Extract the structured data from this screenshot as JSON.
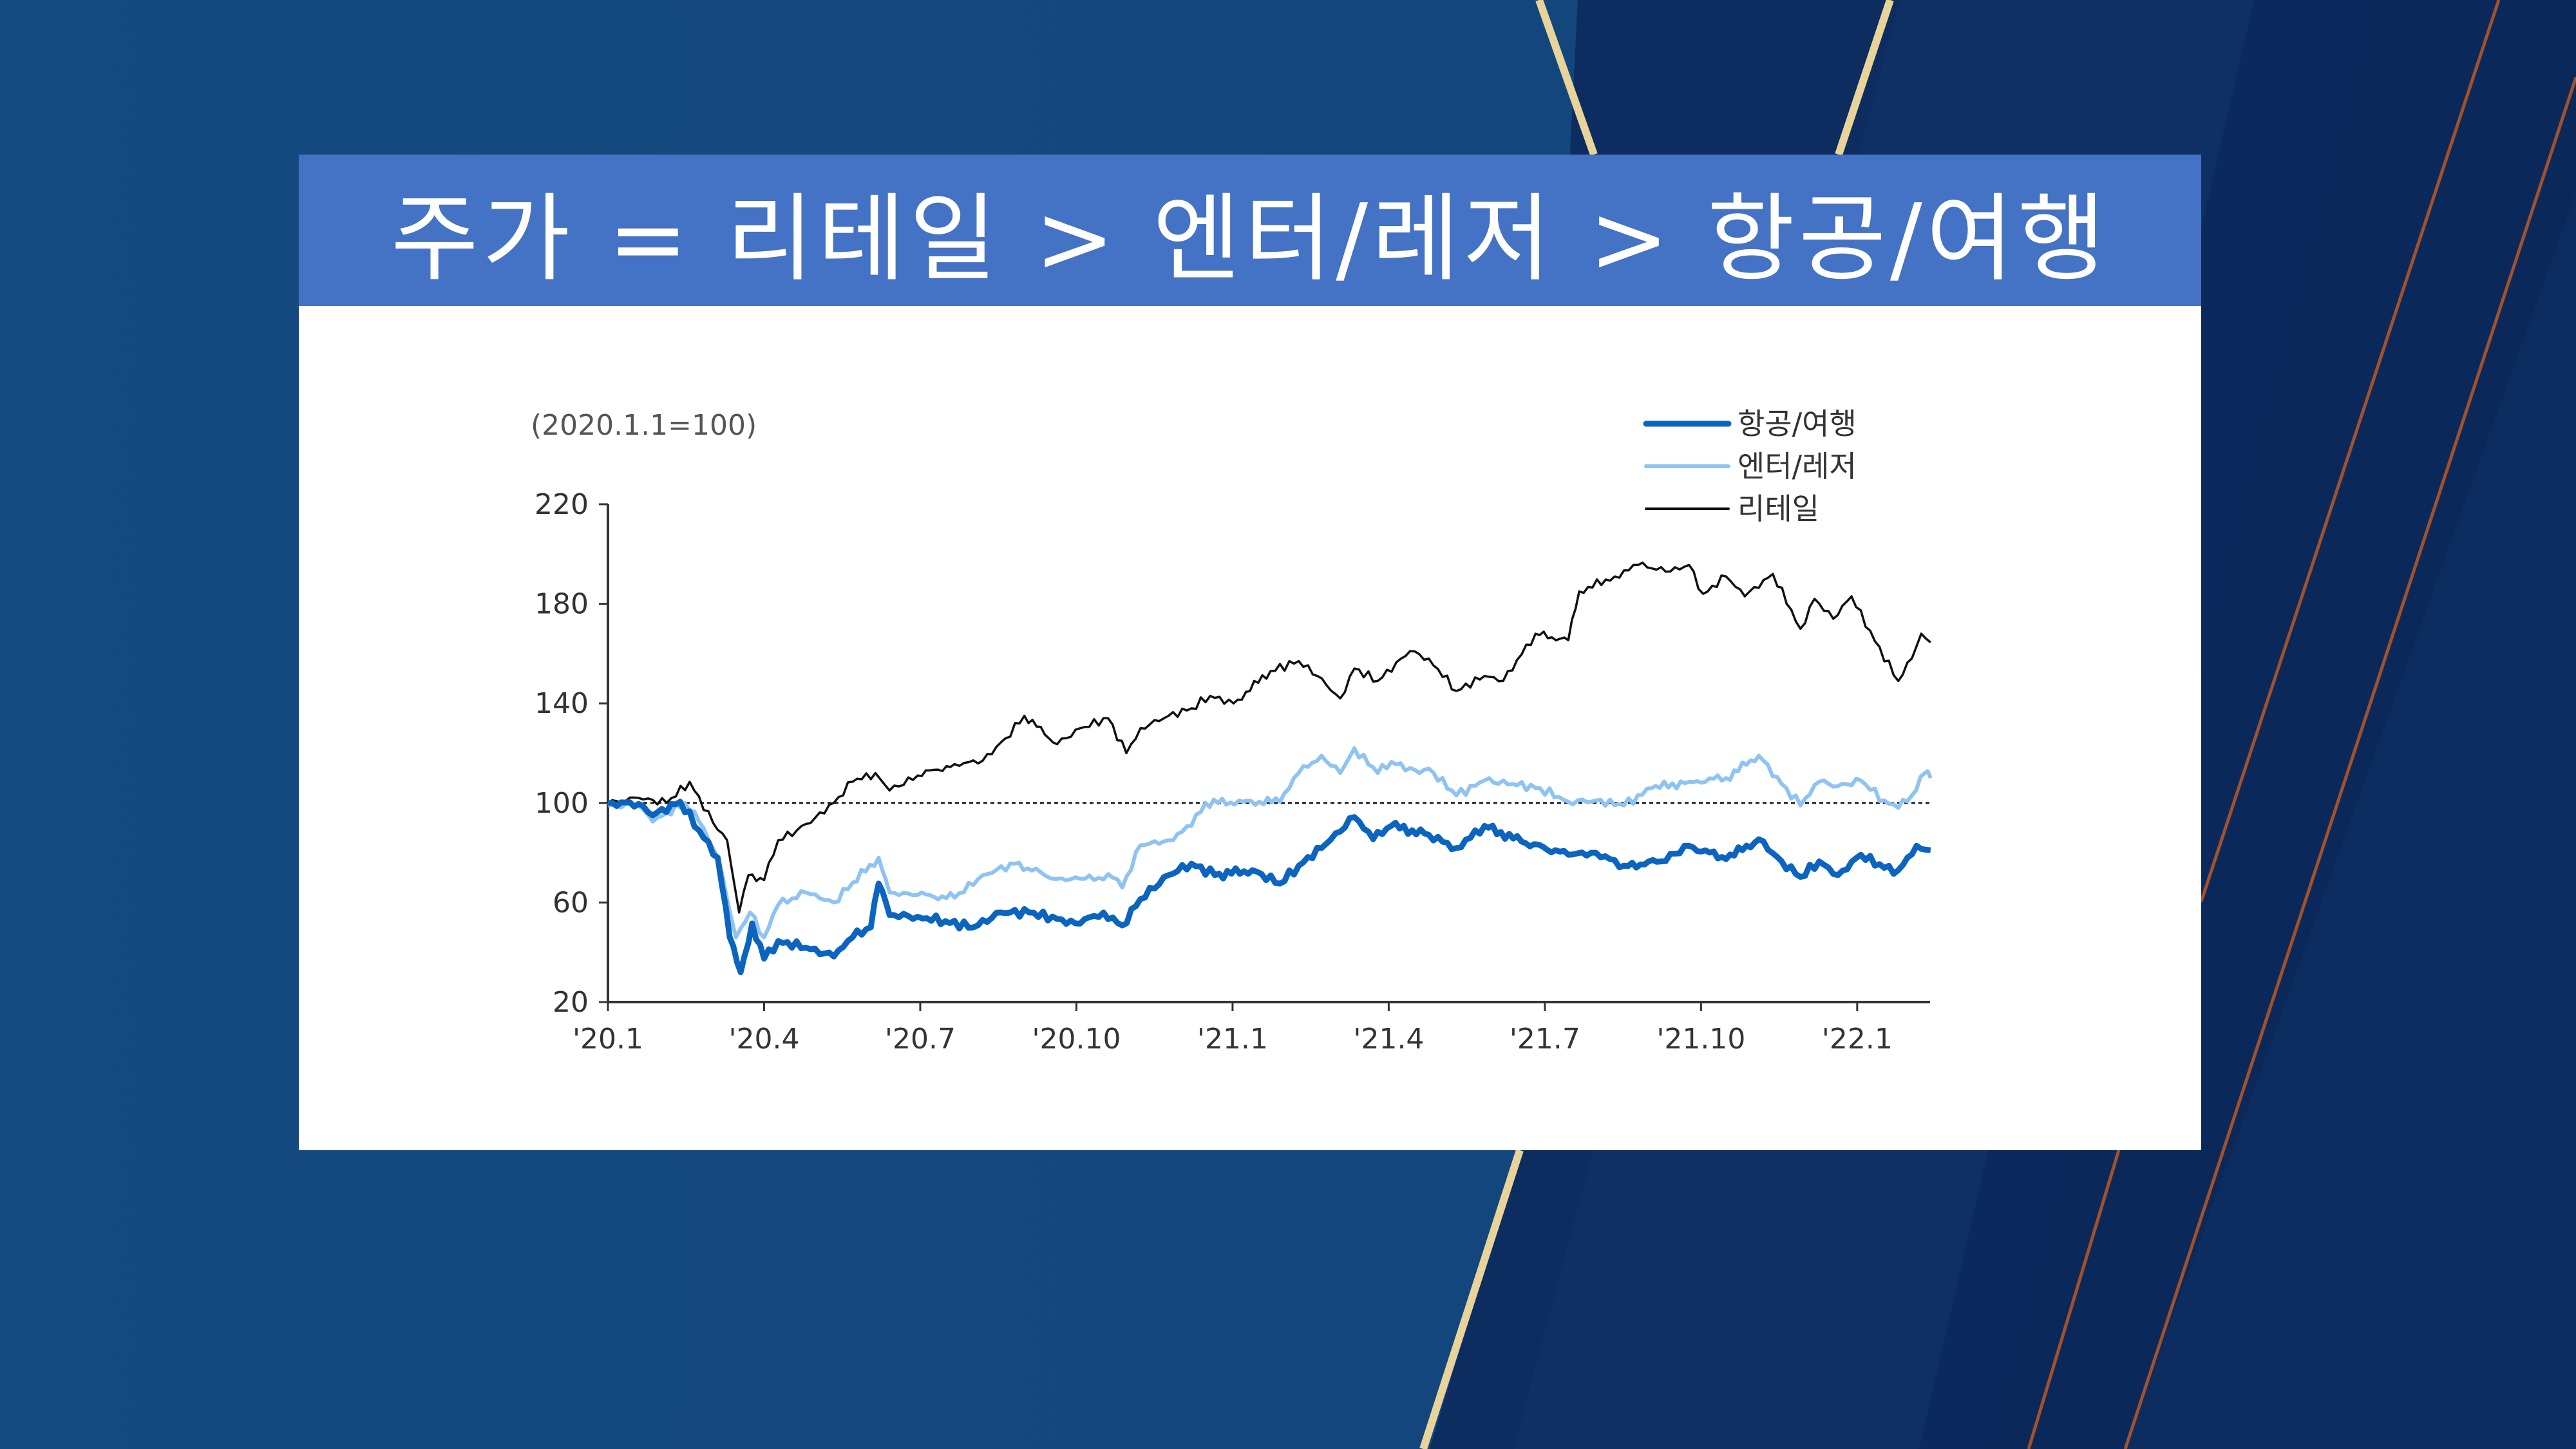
{
  "slide": {
    "title": "주가 = 리테일 > 엔터/레저 > 항공/여행",
    "colors": {
      "title_bar": "#4472c4",
      "background": "#134a7f",
      "background_dark": "#0c2a5e",
      "gold": "#e8d49a",
      "accent_line": "#a0522d"
    }
  },
  "chart_data": {
    "type": "line",
    "unit_label": "(2020.1.1=100)",
    "x_unit": "months since 2020.1",
    "xlim": [
      0,
      25.4
    ],
    "ylim": [
      20,
      220
    ],
    "yticks": [
      220,
      180,
      140,
      100,
      60,
      20
    ],
    "xticks": [
      {
        "x": 0,
        "label": "'20.1"
      },
      {
        "x": 3,
        "label": "'20.4"
      },
      {
        "x": 6,
        "label": "'20.7"
      },
      {
        "x": 9,
        "label": "'20.10"
      },
      {
        "x": 12,
        "label": "'21.1"
      },
      {
        "x": 15,
        "label": "'21.4"
      },
      {
        "x": 18,
        "label": "'21.7"
      },
      {
        "x": 21,
        "label": "'21.10"
      },
      {
        "x": 24,
        "label": "'22.1"
      }
    ],
    "reference_line": 100,
    "legend_position": "top-right",
    "series": [
      {
        "name": "항공/여행",
        "color": "#0b64c0",
        "width": 9,
        "points": [
          [
            0,
            100
          ],
          [
            0.59,
            99.6
          ],
          [
            0.86,
            95
          ],
          [
            1.39,
            100.5
          ],
          [
            1.75,
            89
          ],
          [
            2.11,
            78
          ],
          [
            2.34,
            46
          ],
          [
            2.55,
            32
          ],
          [
            2.77,
            51.6
          ],
          [
            3.0,
            37.4
          ],
          [
            3.27,
            44.5
          ],
          [
            3.8,
            41.9
          ],
          [
            4.34,
            38.3
          ],
          [
            4.7,
            46
          ],
          [
            5.05,
            50
          ],
          [
            5.2,
            67.6
          ],
          [
            5.41,
            55
          ],
          [
            5.95,
            54.3
          ],
          [
            6.48,
            52.5
          ],
          [
            7.02,
            50
          ],
          [
            7.55,
            56
          ],
          [
            8.09,
            56
          ],
          [
            8.63,
            53.4
          ],
          [
            8.98,
            51.6
          ],
          [
            9.52,
            56
          ],
          [
            9.88,
            50.8
          ],
          [
            10.23,
            61.4
          ],
          [
            10.77,
            71
          ],
          [
            11.21,
            75.6
          ],
          [
            11.66,
            71
          ],
          [
            12.38,
            73
          ],
          [
            12.91,
            67.6
          ],
          [
            13.27,
            74.8
          ],
          [
            13.8,
            83.6
          ],
          [
            14.34,
            94.3
          ],
          [
            14.7,
            85.4
          ],
          [
            15.05,
            90.8
          ],
          [
            15.77,
            87.2
          ],
          [
            16.3,
            81.9
          ],
          [
            16.84,
            90.8
          ],
          [
            17.55,
            84.5
          ],
          [
            18.45,
            79.2
          ],
          [
            18.98,
            80
          ],
          [
            19.52,
            74.8
          ],
          [
            20.23,
            76.5
          ],
          [
            20.77,
            82.8
          ],
          [
            21.48,
            77.4
          ],
          [
            22.11,
            85.4
          ],
          [
            22.55,
            76.5
          ],
          [
            22.91,
            70.3
          ],
          [
            23.27,
            76.5
          ],
          [
            23.63,
            71
          ],
          [
            24.07,
            79.2
          ],
          [
            24.52,
            73.9
          ],
          [
            24.79,
            73
          ],
          [
            25.14,
            82.8
          ],
          [
            25.41,
            81
          ]
        ]
      },
      {
        "name": "엔터/레저",
        "color": "#8ec3f2",
        "width": 6,
        "points": [
          [
            0,
            99
          ],
          [
            0.59,
            99
          ],
          [
            0.86,
            92.5
          ],
          [
            1.48,
            100
          ],
          [
            1.75,
            92.5
          ],
          [
            2.11,
            78
          ],
          [
            2.46,
            46
          ],
          [
            2.73,
            56
          ],
          [
            3.0,
            46
          ],
          [
            3.27,
            59
          ],
          [
            3.8,
            64
          ],
          [
            4.34,
            60
          ],
          [
            4.7,
            68
          ],
          [
            5.2,
            78
          ],
          [
            5.41,
            64
          ],
          [
            5.95,
            63
          ],
          [
            6.66,
            62
          ],
          [
            7.2,
            71
          ],
          [
            7.82,
            75.6
          ],
          [
            8.63,
            69.5
          ],
          [
            9.16,
            69.5
          ],
          [
            9.7,
            70
          ],
          [
            9.88,
            66
          ],
          [
            10.23,
            83
          ],
          [
            10.77,
            85
          ],
          [
            11.21,
            90.8
          ],
          [
            11.48,
            100
          ],
          [
            12.2,
            100.5
          ],
          [
            12.91,
            100.5
          ],
          [
            13.27,
            112
          ],
          [
            13.71,
            119
          ],
          [
            14.07,
            112
          ],
          [
            14.34,
            122
          ],
          [
            14.79,
            112
          ],
          [
            15.05,
            116.5
          ],
          [
            15.59,
            112
          ],
          [
            15.77,
            113.8
          ],
          [
            16.3,
            103
          ],
          [
            16.84,
            109
          ],
          [
            17.38,
            107.6
          ],
          [
            17.91,
            105.9
          ],
          [
            18.45,
            100.5
          ],
          [
            18.98,
            101
          ],
          [
            19.52,
            99
          ],
          [
            20.05,
            105.9
          ],
          [
            20.77,
            108.5
          ],
          [
            21.48,
            110
          ],
          [
            22.11,
            119
          ],
          [
            22.55,
            107.6
          ],
          [
            22.91,
            99
          ],
          [
            23.27,
            108.5
          ],
          [
            23.63,
            106.7
          ],
          [
            24.07,
            109
          ],
          [
            24.52,
            101
          ],
          [
            24.79,
            98
          ],
          [
            25.05,
            103
          ],
          [
            25.3,
            112
          ],
          [
            25.41,
            110
          ]
        ]
      },
      {
        "name": "리테일",
        "color": "#111111",
        "width": 3.5,
        "points": [
          [
            0,
            100
          ],
          [
            0.59,
            102
          ],
          [
            1.13,
            100
          ],
          [
            1.57,
            108.5
          ],
          [
            2.02,
            92
          ],
          [
            2.29,
            85
          ],
          [
            2.52,
            56
          ],
          [
            2.7,
            71
          ],
          [
            3.0,
            69
          ],
          [
            3.27,
            85
          ],
          [
            3.63,
            89
          ],
          [
            3.98,
            94
          ],
          [
            4.34,
            100
          ],
          [
            4.7,
            108.5
          ],
          [
            5.14,
            112
          ],
          [
            5.41,
            105
          ],
          [
            5.95,
            111
          ],
          [
            6.66,
            115.6
          ],
          [
            7.2,
            117
          ],
          [
            7.64,
            126
          ],
          [
            8.0,
            135
          ],
          [
            8.63,
            123.6
          ],
          [
            9.07,
            130
          ],
          [
            9.61,
            134
          ],
          [
            9.96,
            120
          ],
          [
            10.23,
            130
          ],
          [
            10.77,
            135
          ],
          [
            11.21,
            138
          ],
          [
            11.57,
            143
          ],
          [
            12.02,
            140
          ],
          [
            12.73,
            153
          ],
          [
            13.27,
            157
          ],
          [
            13.63,
            151
          ],
          [
            14.07,
            142
          ],
          [
            14.34,
            154
          ],
          [
            14.79,
            149
          ],
          [
            15.41,
            161
          ],
          [
            15.77,
            158
          ],
          [
            16.3,
            145
          ],
          [
            16.84,
            151
          ],
          [
            17.2,
            149
          ],
          [
            17.82,
            168
          ],
          [
            18.45,
            165.4
          ],
          [
            18.66,
            185
          ],
          [
            19.34,
            191
          ],
          [
            19.79,
            195.6
          ],
          [
            20.41,
            193
          ],
          [
            20.77,
            195.6
          ],
          [
            21.04,
            184
          ],
          [
            21.48,
            191
          ],
          [
            21.84,
            183
          ],
          [
            22.38,
            192
          ],
          [
            22.91,
            170
          ],
          [
            23.18,
            182
          ],
          [
            23.54,
            174
          ],
          [
            23.89,
            183
          ],
          [
            24.34,
            165
          ],
          [
            24.79,
            149
          ],
          [
            25.05,
            158
          ],
          [
            25.23,
            168
          ],
          [
            25.41,
            164.5
          ]
        ]
      }
    ]
  }
}
